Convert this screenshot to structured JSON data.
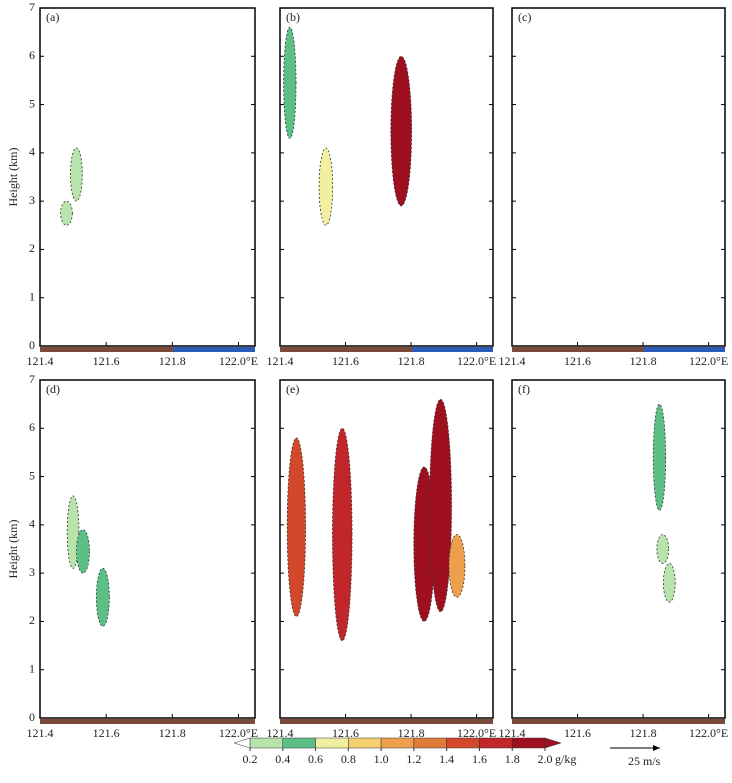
{
  "chart_data": [
    {
      "type": "contour",
      "label": "(a)",
      "ylabel": "Height (km)",
      "xlim": [
        121.4,
        122.05
      ],
      "ylim": [
        0,
        7
      ],
      "xticks": [
        121.4,
        121.6,
        121.8,
        {
          "value": 122.0,
          "label": "122.0°E"
        }
      ],
      "yticks": [
        0,
        1,
        2,
        3,
        4,
        5,
        6,
        7
      ],
      "cells": [
        {
          "lon": 121.51,
          "bottom": 3.0,
          "top": 4.1,
          "value": 0.3
        },
        {
          "lon": 121.48,
          "bottom": 2.5,
          "top": 3.0,
          "value": 0.3
        }
      ]
    },
    {
      "type": "contour",
      "label": "(b)",
      "xlim": [
        121.4,
        122.05
      ],
      "ylim": [
        0,
        7
      ],
      "xticks": [
        121.4,
        121.6,
        121.8,
        {
          "value": 122.0,
          "label": "122.0°E"
        }
      ],
      "yticks": [
        0,
        1,
        2,
        3,
        4,
        5,
        6,
        7
      ],
      "cells": [
        {
          "lon": 121.43,
          "bottom": 4.3,
          "top": 6.6,
          "value": 0.4
        },
        {
          "lon": 121.54,
          "bottom": 2.5,
          "top": 4.1,
          "value": 0.6
        },
        {
          "lon": 121.77,
          "bottom": 2.9,
          "top": 6.0,
          "value": 1.8
        }
      ]
    },
    {
      "type": "contour",
      "label": "(c)",
      "xlim": [
        121.4,
        122.05
      ],
      "ylim": [
        0,
        7
      ],
      "xticks": [
        121.4,
        121.6,
        121.8,
        {
          "value": 122.0,
          "label": "122.0°E"
        }
      ],
      "yticks": [
        0,
        1,
        2,
        3,
        4,
        5,
        6,
        7
      ],
      "cells": []
    },
    {
      "type": "contour",
      "label": "(d)",
      "ylabel": "Height (km)",
      "xlim": [
        121.4,
        122.05
      ],
      "ylim": [
        0,
        7
      ],
      "xticks": [
        121.4,
        121.6,
        121.8,
        {
          "value": 122.0,
          "label": "122.0°E"
        }
      ],
      "yticks": [
        0,
        1,
        2,
        3,
        4,
        5,
        6,
        7
      ],
      "cells": [
        {
          "lon": 121.5,
          "bottom": 3.1,
          "top": 4.6,
          "value": 0.3
        },
        {
          "lon": 121.53,
          "bottom": 3.0,
          "top": 3.9,
          "value": 0.5
        },
        {
          "lon": 121.59,
          "bottom": 1.9,
          "top": 3.1,
          "value": 0.5
        }
      ]
    },
    {
      "type": "contour",
      "label": "(e)",
      "xlim": [
        121.4,
        122.05
      ],
      "ylim": [
        0,
        7
      ],
      "xticks": [
        121.4,
        121.6,
        121.8,
        {
          "value": 122.0,
          "label": "122.0°E"
        }
      ],
      "yticks": [
        0,
        1,
        2,
        3,
        4,
        5,
        6,
        7
      ],
      "cells": [
        {
          "lon": 121.45,
          "bottom": 2.1,
          "top": 5.8,
          "value": 1.4
        },
        {
          "lon": 121.59,
          "bottom": 1.6,
          "top": 6.0,
          "value": 1.6
        },
        {
          "lon": 121.84,
          "bottom": 2.0,
          "top": 5.2,
          "value": 1.8
        },
        {
          "lon": 121.89,
          "bottom": 2.2,
          "top": 6.6,
          "value": 2.0
        },
        {
          "lon": 121.94,
          "bottom": 2.5,
          "top": 3.8,
          "value": 1.0
        }
      ]
    },
    {
      "type": "contour",
      "label": "(f)",
      "xlim": [
        121.4,
        122.05
      ],
      "ylim": [
        0,
        7
      ],
      "xticks": [
        121.4,
        121.6,
        121.8,
        {
          "value": 122.0,
          "label": "122.0°E"
        }
      ],
      "yticks": [
        0,
        1,
        2,
        3,
        4,
        5,
        6,
        7
      ],
      "cells": [
        {
          "lon": 121.85,
          "bottom": 4.3,
          "top": 6.5,
          "value": 0.4
        },
        {
          "lon": 121.88,
          "bottom": 2.4,
          "top": 3.2,
          "value": 0.3
        },
        {
          "lon": 121.86,
          "bottom": 3.2,
          "top": 3.8,
          "value": 0.3
        }
      ]
    }
  ],
  "colorbar": {
    "ticks": [
      0.2,
      0.4,
      0.6,
      0.8,
      {
        "value": 1,
        "label": "1.0"
      },
      1.2,
      1.4,
      1.6,
      1.8,
      {
        "value": 2,
        "label": "2.0"
      }
    ],
    "unit": "g/kg",
    "colors": [
      "#b8e3aa",
      "#5cbf86",
      "#f3efa0",
      "#f4cf6e",
      "#ee9f4c",
      "#e07a38",
      "#d3482a",
      "#c1262a",
      "#9e1020"
    ]
  },
  "reference_vector": "25 m/s"
}
